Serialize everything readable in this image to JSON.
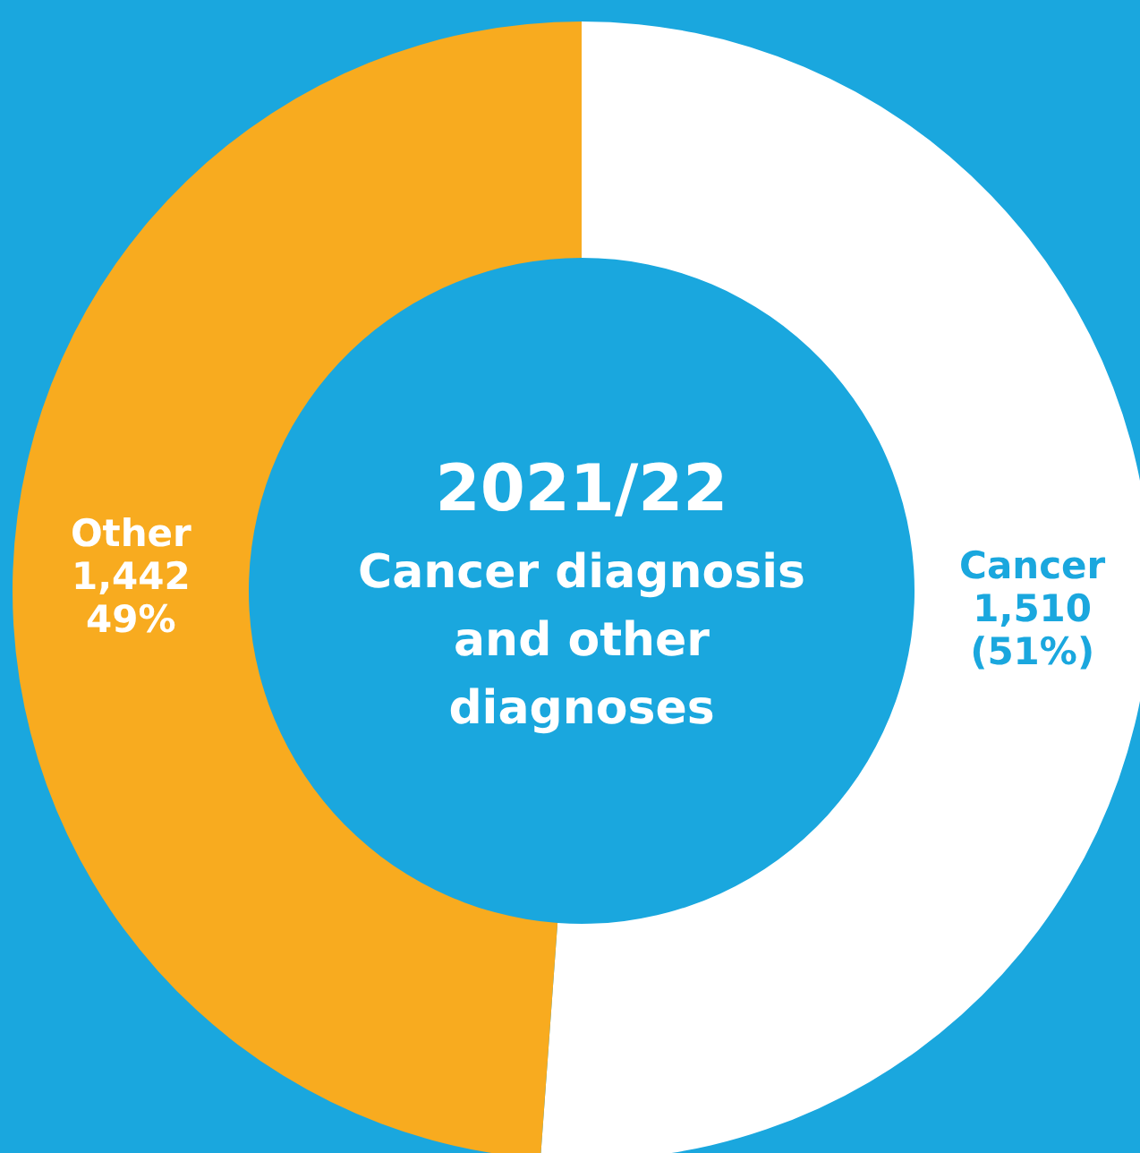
{
  "chart_data": {
    "type": "donut",
    "title": "2021/22",
    "subtitle": "Cancer diagnosis and other diagnoses",
    "categories": [
      "Cancer",
      "Other"
    ],
    "values": [
      1510,
      1442
    ],
    "colors": [
      "#ffffff",
      "#f8ab1f"
    ],
    "value_labels": [
      "1,510\n(51%)",
      "1,442\n49%"
    ]
  }
}
